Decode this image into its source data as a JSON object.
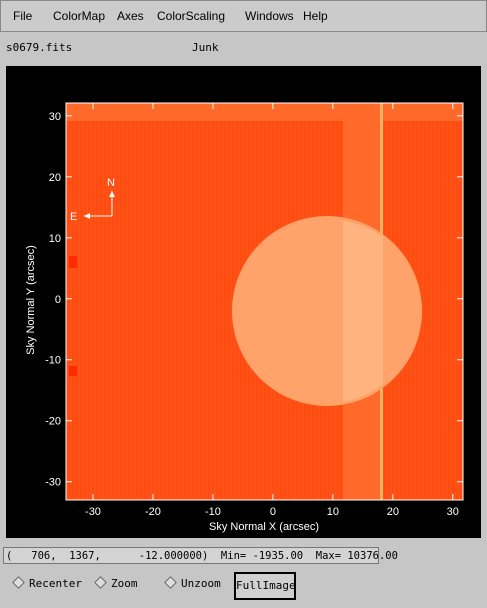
{
  "menu": [
    "File",
    "ColorMap",
    "Axes",
    "ColorScaling",
    "Windows",
    "Help"
  ],
  "header": {
    "filename": "s0679.fits",
    "title": "Junk"
  },
  "plot": {
    "x_label": "Sky Normal X (arcsec)",
    "y_label": "Sky Normal Y (arcsec)",
    "xlim": [
      -34.5,
      31.7
    ],
    "ylim": [
      -33,
      32.1
    ],
    "xticks": [
      -30,
      -20,
      -10,
      0,
      10,
      20,
      30
    ],
    "yticks": [
      -30,
      -20,
      -10,
      0,
      10,
      20,
      30
    ],
    "compass": {
      "north": "N",
      "east": "E"
    }
  },
  "status": "(   706,  1367,      -12.000000)  Min= -1935.00  Max= 10376.00",
  "buttons": [
    "Recenter",
    "Zoom",
    "Unzoom",
    "FullImage"
  ]
}
